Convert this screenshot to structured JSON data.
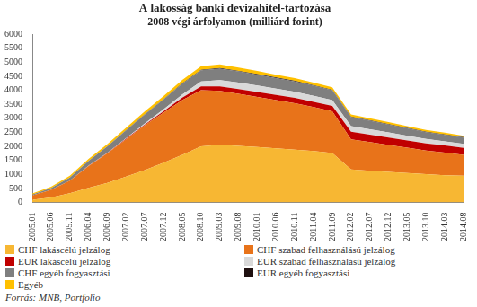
{
  "chart_data": {
    "type": "area",
    "title": "A lakosság banki devizahitel-tartozása",
    "subtitle": "2008 végi árfolyamon (milliárd forint)",
    "source": "Forrás: MNB, Portfolio",
    "categories": [
      "2005.01",
      "2005.06",
      "2005.11",
      "2006.04",
      "2006.09",
      "2007.02",
      "2007.07",
      "2007.12",
      "2008.05",
      "2008.10",
      "2009.03",
      "2009.08",
      "2010.01",
      "2010.06",
      "2010.11",
      "2011.04",
      "2011.09",
      "2012.02",
      "2012.07",
      "2012.12",
      "2013.05",
      "2013.10",
      "2014.03",
      "2014.08"
    ],
    "stacked": true,
    "grid": false,
    "legend": "bottom",
    "ylim": [
      0,
      6000
    ],
    "yticks": [
      0,
      500,
      1000,
      1500,
      2000,
      2500,
      3000,
      3500,
      4000,
      4500,
      5000,
      5500,
      6000
    ],
    "series": [
      {
        "name": "CHF lakáscélú jelzálog",
        "color": "#f7b733",
        "values": [
          100,
          180,
          330,
          520,
          700,
          920,
          1150,
          1420,
          1700,
          2000,
          2060,
          2020,
          1980,
          1930,
          1880,
          1830,
          1760,
          1180,
          1130,
          1090,
          1050,
          1010,
          970,
          950
        ]
      },
      {
        "name": "CHF szabad felhasználású jelzálog",
        "color": "#e8731a",
        "values": [
          150,
          270,
          450,
          780,
          1050,
          1330,
          1600,
          1780,
          1950,
          2000,
          1920,
          1850,
          1780,
          1720,
          1660,
          1570,
          1490,
          1070,
          1020,
          960,
          900,
          840,
          810,
          750
        ]
      },
      {
        "name": "EUR lakáscélú jelzálog",
        "color": "#c00000",
        "values": [
          0,
          0,
          0,
          5,
          10,
          20,
          30,
          50,
          90,
          140,
          160,
          170,
          175,
          180,
          185,
          185,
          190,
          270,
          270,
          265,
          260,
          255,
          250,
          245
        ]
      },
      {
        "name": "EUR szabad felhasználású jelzálog",
        "color": "#d9d9d9",
        "values": [
          0,
          0,
          0,
          5,
          10,
          20,
          40,
          70,
          110,
          170,
          220,
          230,
          230,
          225,
          220,
          215,
          210,
          200,
          190,
          180,
          170,
          160,
          150,
          145
        ]
      },
      {
        "name": "CHF egyéb fogyasztási",
        "color": "#7f7f7f",
        "values": [
          30,
          60,
          110,
          170,
          230,
          280,
          320,
          350,
          380,
          400,
          410,
          400,
          390,
          380,
          370,
          360,
          350,
          320,
          300,
          280,
          260,
          240,
          230,
          220
        ]
      },
      {
        "name": "EUR egyéb fogyasztási",
        "color": "#1f1010",
        "values": [
          0,
          0,
          0,
          0,
          2,
          4,
          6,
          10,
          15,
          20,
          22,
          22,
          22,
          21,
          21,
          20,
          20,
          20,
          19,
          18,
          17,
          16,
          15,
          15
        ]
      },
      {
        "name": "Egyéb",
        "color": "#ffc000",
        "values": [
          40,
          50,
          60,
          70,
          80,
          90,
          100,
          110,
          120,
          130,
          130,
          120,
          110,
          100,
          95,
          90,
          85,
          80,
          75,
          70,
          65,
          60,
          60,
          55
        ]
      }
    ]
  }
}
